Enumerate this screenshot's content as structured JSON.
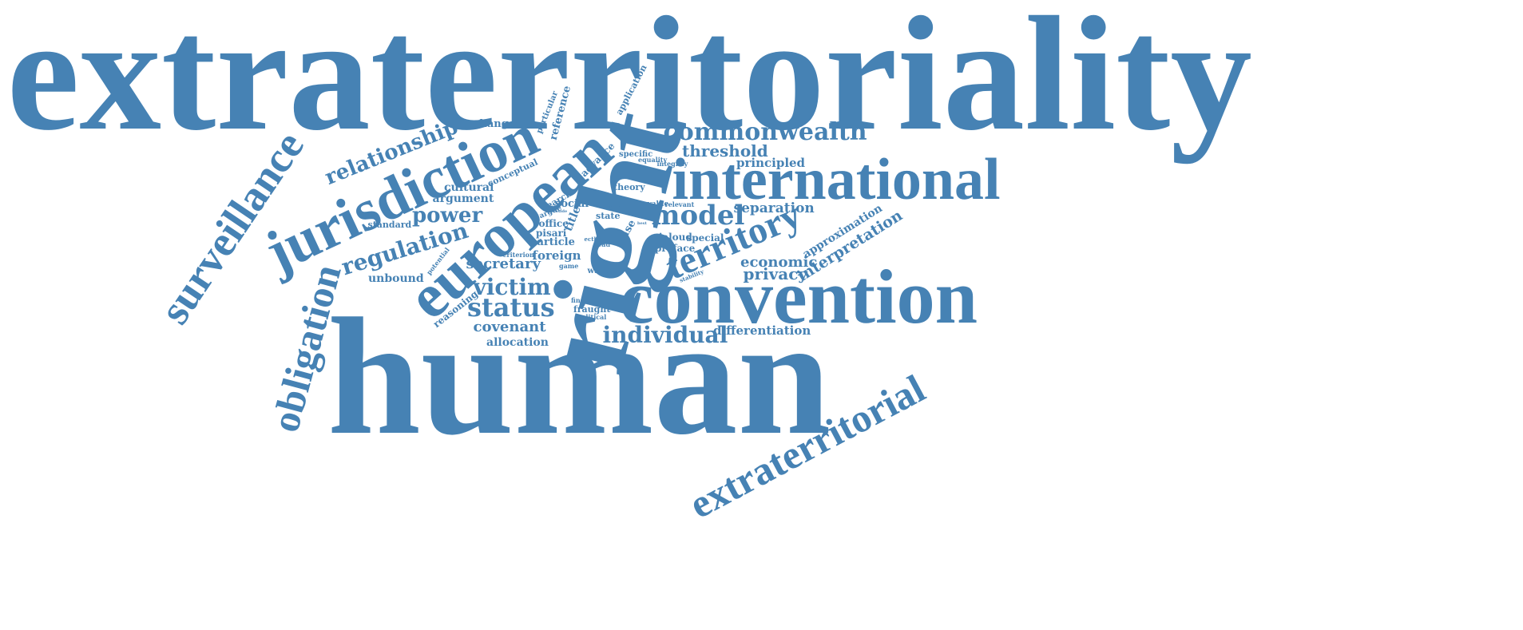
{
  "color": "#4682b4",
  "words": [
    "extraterritoriality",
    "human",
    "right",
    "convention",
    "international",
    "european",
    "jurisdiction",
    "surveillance",
    "obligation",
    "extraterritorial",
    "territory",
    "commonwealth",
    "model",
    "status",
    "relationship",
    "regulation",
    "power",
    "victim",
    "individual",
    "threshold",
    "economic",
    "privacy",
    "separation",
    "interpretation",
    "secretary",
    "covenant",
    "principled",
    "approximation",
    "unbound",
    "argument",
    "cultural",
    "allocation",
    "differentiation",
    "changer",
    "reference",
    "application",
    "particular",
    "conceptual",
    "advance",
    "specific",
    "equality",
    "integrity",
    "theory",
    "search",
    "social",
    "argue",
    "title",
    "value",
    "relevant",
    "state",
    "court",
    "best",
    "aside",
    "office",
    "case",
    "pisari",
    "jaloud",
    "special",
    "preface",
    "article",
    "foreign",
    "ecthr",
    "read",
    "criterion",
    "potential",
    "standard",
    "game",
    "watch",
    "stability",
    "reasoning",
    "finding",
    "fraught",
    "political"
  ]
}
